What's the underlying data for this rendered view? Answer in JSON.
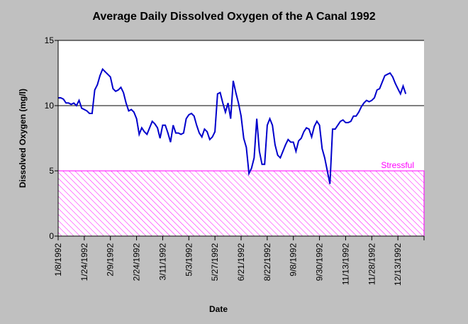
{
  "chart_data": {
    "type": "line",
    "title": "Average Daily Dissolved Oxygen of the A Canal 1992",
    "x_label": "Date",
    "y_label": "Dissolved Oxygen (mg/l)",
    "categories": [
      "1/8/1992",
      null,
      null,
      null,
      null,
      null,
      null,
      null,
      null,
      null,
      "1/24/1992",
      null,
      null,
      null,
      null,
      null,
      null,
      null,
      null,
      null,
      "2/9/1992",
      null,
      null,
      null,
      null,
      null,
      null,
      null,
      null,
      null,
      "2/24/1992",
      null,
      null,
      null,
      null,
      null,
      null,
      null,
      null,
      null,
      "3/11/1992",
      null,
      null,
      null,
      null,
      null,
      null,
      null,
      null,
      null,
      "5/3/1992",
      null,
      null,
      null,
      null,
      null,
      null,
      null,
      null,
      null,
      "5/27/1992",
      null,
      null,
      null,
      null,
      null,
      null,
      null,
      null,
      null,
      "6/21/1992",
      null,
      null,
      null,
      null,
      null,
      null,
      null,
      null,
      null,
      "8/22/1992",
      null,
      null,
      null,
      null,
      null,
      null,
      null,
      null,
      null,
      "9/8/1992",
      null,
      null,
      null,
      null,
      null,
      null,
      null,
      null,
      null,
      "9/30/1992",
      null,
      null,
      null,
      null,
      null,
      null,
      null,
      null,
      null,
      "11/13/1992",
      null,
      null,
      null,
      null,
      null,
      null,
      null,
      null,
      null,
      "11/28/1992",
      null,
      null,
      null,
      null,
      null,
      null,
      null,
      null,
      null,
      "12/13/1992",
      null,
      null,
      null,
      null,
      null,
      null,
      null,
      null,
      null
    ],
    "series": [
      {
        "color": "#0000cc",
        "values": [
          10.6,
          10.6,
          10.5,
          10.2,
          10.2,
          10.1,
          10.2,
          10.0,
          10.4,
          9.8,
          9.7,
          9.6,
          9.4,
          9.4,
          11.2,
          11.6,
          12.3,
          12.8,
          12.6,
          12.4,
          12.2,
          11.3,
          11.1,
          11.2,
          11.4,
          11.0,
          10.2,
          9.6,
          9.7,
          9.5,
          9.0,
          7.8,
          8.3,
          8.0,
          7.8,
          8.3,
          8.8,
          8.6,
          8.3,
          7.5,
          8.5,
          8.5,
          7.9,
          7.2,
          8.5,
          7.9,
          7.9,
          7.8,
          7.9,
          9.0,
          9.3,
          9.4,
          9.2,
          8.5,
          7.9,
          7.6,
          8.2,
          8.0,
          7.4,
          7.6,
          8.0,
          10.9,
          11.0,
          10.2,
          9.5,
          10.2,
          9.0,
          11.9,
          11.0,
          10.2,
          9.2,
          7.5,
          6.8,
          4.8,
          5.2,
          6.0,
          9.0,
          6.5,
          5.5,
          5.5,
          8.5,
          9.0,
          8.5,
          7.0,
          6.2,
          6.0,
          6.5,
          7.0,
          7.4,
          7.2,
          7.2,
          6.5,
          7.3,
          7.5,
          8.0,
          8.3,
          8.2,
          7.6,
          8.4,
          8.8,
          8.5,
          6.7,
          6.0,
          5.0,
          4.0,
          8.2,
          8.2,
          8.5,
          8.8,
          8.9,
          8.7,
          8.7,
          8.8,
          9.2,
          9.2,
          9.5,
          9.9,
          10.2,
          10.4,
          10.3,
          10.4,
          10.6,
          11.2,
          11.3,
          11.8,
          12.3,
          12.4,
          12.5,
          12.2,
          11.7,
          11.3,
          10.9,
          11.5,
          10.9,
          null,
          null,
          null,
          null,
          null,
          null
        ]
      }
    ],
    "ylim": [
      0,
      15
    ],
    "yticks": [
      0,
      5,
      10,
      15
    ],
    "grid": true,
    "threshold": {
      "value": 5,
      "label": "Stressful",
      "color": "#ff00ff"
    }
  }
}
